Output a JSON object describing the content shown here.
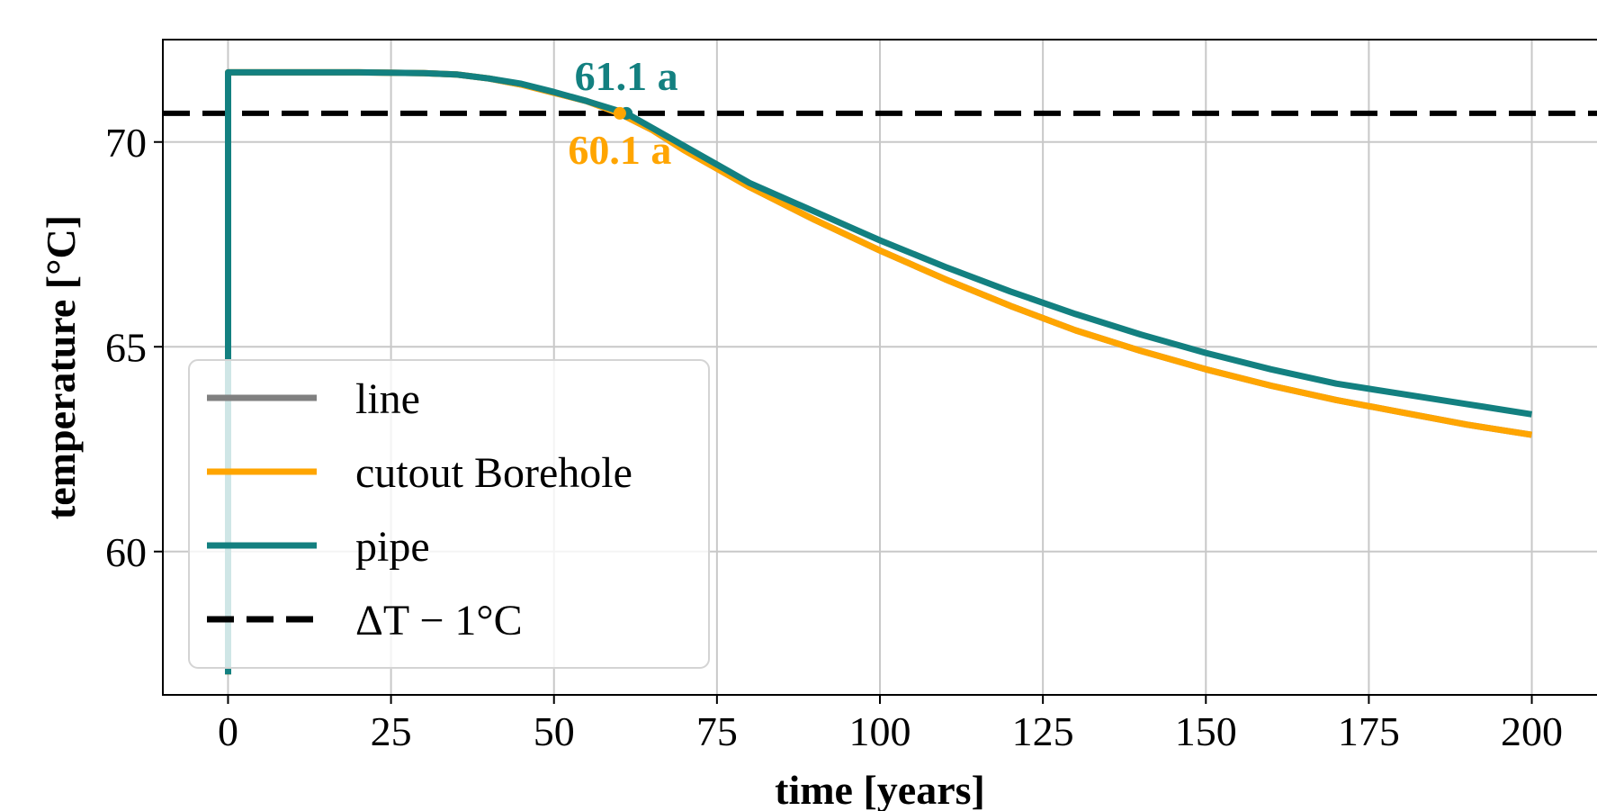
{
  "chart_data": {
    "type": "line",
    "xlabel": "time [years]",
    "ylabel": "temperature [°C]",
    "xlim": [
      -10,
      210
    ],
    "ylim": [
      56.5,
      72.5
    ],
    "x_ticks": [
      0,
      25,
      50,
      75,
      100,
      125,
      150,
      175,
      200
    ],
    "x_tick_labels": [
      "0",
      "25",
      "50",
      "75",
      "100",
      "125",
      "150",
      "175",
      "200"
    ],
    "y_ticks": [
      60,
      65,
      70
    ],
    "y_tick_labels": [
      "60",
      "65",
      "70"
    ],
    "grid": true,
    "legend_position": "lower-left",
    "threshold": {
      "name": "ΔT − 1°C",
      "y": 70.7,
      "color": "#000000",
      "style": "dashed"
    },
    "series": [
      {
        "name": "line",
        "color": "#808080",
        "x": [
          0,
          0,
          10,
          20,
          30,
          35,
          40,
          45,
          50,
          55,
          60,
          65,
          70,
          75,
          80,
          90,
          100,
          110,
          120,
          130,
          140,
          150,
          160,
          170,
          180,
          190,
          200
        ],
        "y": [
          57.0,
          71.7,
          71.7,
          71.7,
          71.68,
          71.65,
          71.55,
          71.4,
          71.2,
          71.0,
          70.7,
          70.3,
          69.8,
          69.35,
          68.9,
          68.1,
          67.35,
          66.65,
          66.0,
          65.4,
          64.9,
          64.45,
          64.05,
          63.7,
          63.4,
          63.1,
          62.85
        ]
      },
      {
        "name": "cutout Borehole",
        "color": "#ffa500",
        "x": [
          0,
          0,
          10,
          20,
          30,
          35,
          40,
          45,
          50,
          55,
          60,
          65,
          70,
          75,
          80,
          90,
          100,
          110,
          120,
          130,
          140,
          150,
          160,
          170,
          180,
          190,
          200
        ],
        "y": [
          57.0,
          71.7,
          71.7,
          71.7,
          71.68,
          71.65,
          71.55,
          71.4,
          71.2,
          71.0,
          70.7,
          70.3,
          69.8,
          69.35,
          68.9,
          68.1,
          67.35,
          66.65,
          66.0,
          65.4,
          64.9,
          64.45,
          64.05,
          63.7,
          63.4,
          63.1,
          62.85
        ]
      },
      {
        "name": "pipe",
        "color": "#138080",
        "x": [
          0,
          0,
          10,
          20,
          30,
          35,
          40,
          45,
          50,
          55,
          61.1,
          65,
          70,
          75,
          80,
          90,
          100,
          110,
          120,
          130,
          140,
          150,
          160,
          170,
          180,
          190,
          200
        ],
        "y": [
          57.0,
          71.7,
          71.7,
          71.7,
          71.68,
          71.65,
          71.55,
          71.42,
          71.22,
          71.0,
          70.7,
          70.35,
          69.9,
          69.45,
          69.0,
          68.3,
          67.6,
          66.95,
          66.35,
          65.8,
          65.3,
          64.85,
          64.45,
          64.1,
          63.85,
          63.6,
          63.35
        ]
      }
    ],
    "annotations": [
      {
        "text": "61.1 a",
        "x": 61.1,
        "y": 70.7,
        "color": "#138080",
        "position": "above"
      },
      {
        "text": "60.1 a",
        "x": 60.1,
        "y": 70.7,
        "color": "#ffa500",
        "position": "below"
      }
    ]
  }
}
